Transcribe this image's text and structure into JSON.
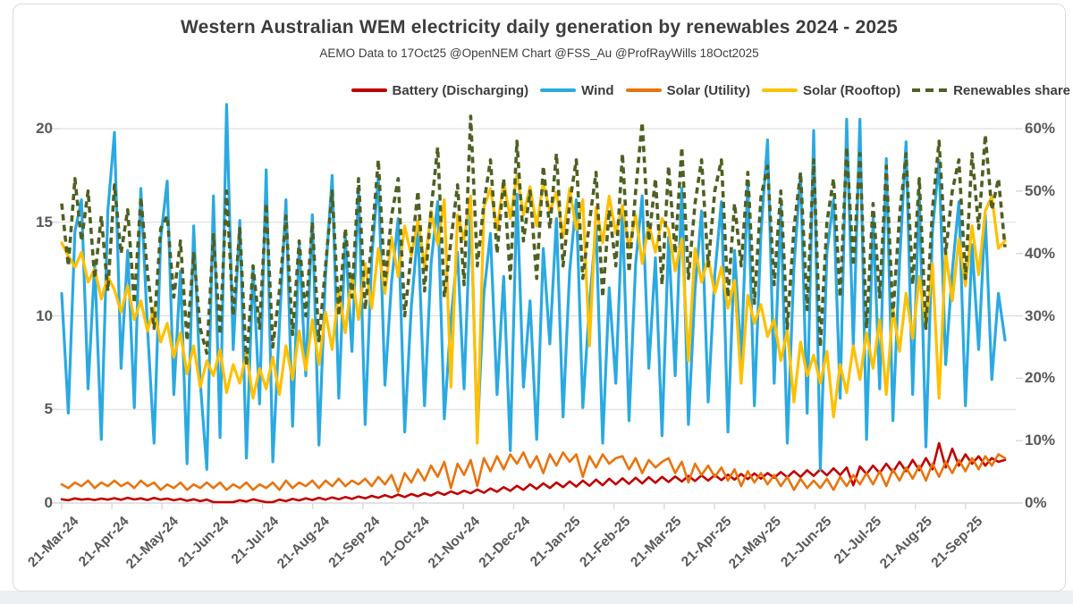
{
  "title": "Western Australian WEM electricity daily generation by renewables 2024 - 2025",
  "subtitle": "AEMO Data to 17Oct25 @OpenNEM Chart @FSS_Au @ProfRayWills 18Oct2025",
  "colors": {
    "grid": "#d9d9d9",
    "axis_text": "#595959",
    "title_text": "#3d3d3d",
    "battery": "#c00000",
    "wind": "#2ba9e1",
    "solar_utility": "#e8740e",
    "solar_rooftop": "#ffc000",
    "renewables_share": "#4e6022"
  },
  "chart_data": {
    "type": "line",
    "title": "Western Australian WEM electricity daily generation by renewables 2024 - 2025",
    "subtitle": "AEMO Data to 17Oct25 @OpenNEM Chart @FSS_Au @ProfRayWills 18Oct2025",
    "legend_position": "top-right",
    "grid": "horizontal",
    "x_start": "21-Mar-24",
    "x_end": "17-Oct-25",
    "sample_interval_days": 4,
    "x_tick_labels": [
      "21-Mar-24",
      "21-Apr-24",
      "21-May-24",
      "21-Jun-24",
      "21-Jul-24",
      "21-Aug-24",
      "21-Sep-24",
      "21-Oct-24",
      "21-Nov-24",
      "21-Dec-24",
      "21-Jan-25",
      "21-Feb-25",
      "21-Mar-25",
      "21-Apr-25",
      "21-May-25",
      "21-Jun-25",
      "21-Jul-25",
      "21-Aug-25",
      "21-Sep-25"
    ],
    "left_axis": {
      "ticks": [
        "20",
        "15",
        "10",
        "5",
        "0"
      ],
      "range": [
        0,
        20
      ]
    },
    "right_axis": {
      "ticks": [
        "60%",
        "50%",
        "40%",
        "30%",
        "20%",
        "10%",
        "0%"
      ],
      "range": [
        0,
        60
      ]
    },
    "series": [
      {
        "name": "Battery (Discharging)",
        "axis": "left",
        "color": "#c00000",
        "dashed": false,
        "values": [
          0.2,
          0.15,
          0.25,
          0.18,
          0.22,
          0.16,
          0.24,
          0.18,
          0.26,
          0.17,
          0.28,
          0.19,
          0.25,
          0.16,
          0.27,
          0.18,
          0.24,
          0.15,
          0.22,
          0.12,
          0.2,
          0.1,
          0.18,
          0.05,
          0.05,
          0.05,
          0.05,
          0.15,
          0.08,
          0.2,
          0.12,
          0.05,
          0.05,
          0.18,
          0.1,
          0.22,
          0.14,
          0.25,
          0.16,
          0.28,
          0.18,
          0.3,
          0.2,
          0.32,
          0.22,
          0.35,
          0.25,
          0.38,
          0.28,
          0.42,
          0.3,
          0.45,
          0.32,
          0.48,
          0.36,
          0.52,
          0.4,
          0.58,
          0.44,
          0.62,
          0.48,
          0.66,
          0.52,
          0.72,
          0.55,
          0.78,
          0.6,
          0.85,
          0.65,
          0.92,
          0.7,
          1.0,
          0.75,
          1.05,
          0.8,
          1.1,
          0.85,
          1.15,
          0.88,
          1.2,
          0.92,
          1.25,
          0.95,
          1.3,
          1.0,
          1.32,
          1.02,
          1.35,
          1.05,
          1.38,
          1.08,
          1.4,
          1.12,
          1.42,
          1.15,
          1.45,
          1.18,
          1.48,
          1.2,
          1.5,
          1.22,
          1.52,
          1.25,
          1.55,
          1.28,
          1.58,
          1.3,
          1.6,
          1.35,
          1.65,
          1.38,
          1.7,
          1.4,
          1.75,
          1.45,
          1.8,
          1.48,
          1.85,
          1.5,
          1.9,
          0.95,
          1.95,
          1.55,
          2.0,
          1.6,
          2.1,
          1.65,
          2.2,
          1.7,
          2.3,
          1.75,
          2.4,
          1.8,
          3.2,
          1.9,
          2.9,
          2.0,
          2.6,
          2.1,
          2.5,
          2.0,
          2.4,
          2.2,
          2.3
        ]
      },
      {
        "name": "Wind",
        "axis": "left",
        "color": "#2ba9e1",
        "dashed": false,
        "values": [
          11.2,
          4.8,
          14.5,
          16.2,
          6.1,
          12.8,
          3.4,
          15.6,
          19.8,
          7.2,
          13.5,
          5.1,
          16.8,
          9.4,
          3.2,
          14.1,
          17.2,
          5.8,
          12.4,
          2.1,
          14.8,
          6.5,
          1.8,
          16.4,
          3.5,
          21.3,
          8.2,
          15.1,
          2.4,
          12.6,
          5.3,
          17.8,
          2.2,
          9.5,
          16.2,
          4.1,
          13.8,
          6.8,
          15.4,
          3.1,
          12.2,
          17.5,
          5.6,
          14.2,
          8.1,
          16.8,
          4.2,
          13.1,
          17.4,
          6.3,
          11.8,
          15.2,
          3.8,
          10.5,
          14.6,
          5.2,
          12.8,
          16.1,
          4.5,
          9.8,
          13.4,
          6.1,
          15.8,
          3.6,
          11.2,
          14.4,
          5.8,
          12.1,
          2.8,
          16.5,
          6.2,
          10.8,
          3.4,
          13.6,
          8.5,
          15.2,
          4.6,
          12.4,
          16.2,
          5.1,
          10.6,
          14.8,
          3.2,
          11.5,
          6.4,
          15.6,
          4.4,
          12.8,
          16.4,
          7.2,
          13.1,
          3.6,
          14.2,
          6.8,
          16.8,
          4.2,
          11.4,
          15.6,
          5.4,
          12.2,
          16.1,
          3.8,
          13.5,
          7.6,
          17.2,
          5.2,
          14.4,
          19.4,
          6.4,
          15.8,
          3.2,
          12.6,
          17.6,
          4.8,
          19.9,
          1.8,
          13.4,
          16.2,
          5.6,
          20.5,
          8.4,
          20.5,
          3.4,
          15.2,
          6.1,
          18.4,
          4.4,
          12.8,
          19.3,
          5.8,
          16.6,
          3.0,
          14.5,
          18.3,
          7.4,
          12.4,
          16.1,
          5.2,
          13.8,
          8.2,
          15.4,
          6.6,
          11.2,
          8.7
        ]
      },
      {
        "name": "Solar (Utility)",
        "axis": "left",
        "color": "#e8740e",
        "dashed": false,
        "values": [
          1.0,
          0.8,
          1.1,
          0.9,
          1.2,
          0.8,
          1.1,
          0.9,
          1.2,
          0.9,
          1.1,
          0.8,
          1.2,
          0.9,
          1.1,
          0.7,
          1.0,
          0.8,
          1.1,
          0.7,
          1.0,
          0.8,
          1.1,
          0.8,
          1.1,
          0.7,
          1.0,
          0.8,
          1.1,
          0.7,
          1.0,
          0.8,
          1.1,
          0.7,
          1.2,
          0.8,
          1.1,
          0.9,
          1.2,
          0.8,
          1.2,
          0.9,
          1.3,
          0.9,
          1.2,
          1.0,
          1.3,
          0.9,
          1.4,
          1.0,
          1.5,
          0.6,
          1.6,
          1.1,
          1.8,
          1.2,
          2.0,
          1.4,
          2.2,
          0.8,
          2.1,
          1.5,
          2.3,
          0.9,
          2.4,
          1.7,
          2.5,
          1.8,
          2.6,
          2.1,
          2.7,
          1.9,
          2.5,
          1.6,
          2.6,
          2.0,
          2.7,
          2.2,
          2.6,
          1.4,
          2.5,
          1.9,
          2.6,
          2.1,
          2.4,
          2.5,
          1.8,
          2.4,
          1.6,
          2.3,
          1.9,
          2.2,
          2.4,
          1.6,
          2.2,
          1.1,
          2.1,
          1.5,
          2.0,
          1.4,
          1.9,
          1.2,
          1.8,
          0.9,
          1.7,
          1.1,
          1.6,
          1.0,
          1.5,
          0.9,
          1.4,
          0.7,
          1.3,
          0.8,
          1.2,
          0.8,
          1.3,
          0.7,
          1.4,
          0.9,
          1.5,
          1.0,
          1.6,
          1.0,
          1.7,
          0.9,
          1.8,
          1.2,
          1.9,
          1.3,
          2.0,
          1.2,
          2.1,
          1.4,
          2.2,
          1.6,
          2.3,
          1.7,
          2.4,
          1.8,
          2.5,
          2.0,
          2.6,
          2.4
        ]
      },
      {
        "name": "Solar (Rooftop)",
        "axis": "left",
        "color": "#ffc000",
        "dashed": false,
        "values": [
          13.9,
          13.2,
          12.6,
          13.4,
          11.8,
          12.5,
          10.9,
          12.1,
          11.4,
          10.2,
          11.6,
          9.8,
          10.8,
          9.2,
          10.4,
          8.6,
          9.6,
          7.8,
          9.1,
          6.9,
          8.4,
          6.2,
          7.6,
          6.8,
          8.2,
          5.9,
          7.4,
          6.4,
          8.0,
          5.6,
          7.2,
          6.1,
          7.8,
          5.8,
          8.4,
          6.6,
          9.2,
          7.1,
          9.8,
          7.4,
          10.2,
          8.2,
          11.4,
          9.1,
          12.2,
          9.8,
          12.8,
          10.4,
          13.6,
          11.2,
          14.2,
          12.1,
          14.8,
          13.2,
          15.1,
          12.6,
          15.6,
          13.8,
          16.2,
          6.2,
          15.4,
          14.1,
          16.4,
          3.2,
          15.8,
          16.8,
          14.6,
          17.2,
          15.2,
          17.5,
          15.4,
          16.9,
          14.8,
          17.1,
          15.6,
          16.6,
          14.2,
          16.8,
          14.6,
          16.2,
          8.4,
          15.8,
          13.9,
          16.4,
          14.4,
          15.9,
          13.6,
          15.4,
          12.8,
          14.9,
          13.4,
          15.2,
          14.6,
          12.4,
          14.1,
          7.6,
          13.6,
          11.8,
          13.1,
          11.2,
          12.6,
          10.4,
          11.9,
          6.4,
          11.1,
          9.6,
          10.6,
          8.9,
          9.8,
          7.6,
          9.2,
          5.4,
          8.6,
          6.8,
          7.9,
          6.4,
          8.1,
          4.6,
          7.4,
          5.9,
          8.4,
          6.6,
          9.1,
          7.2,
          9.8,
          5.8,
          10.4,
          8.1,
          11.2,
          8.8,
          12.1,
          9.4,
          12.8,
          5.6,
          13.4,
          10.8,
          14.1,
          11.6,
          14.8,
          12.2,
          15.6,
          16.4,
          13.6,
          14.0
        ]
      },
      {
        "name": "Renewables share",
        "axis": "right",
        "color": "#4e6022",
        "dashed": true,
        "values": [
          48,
          38,
          52,
          42,
          50,
          36,
          46,
          34,
          51,
          40,
          47,
          32,
          49,
          37,
          28,
          44,
          46,
          33,
          42,
          26,
          40,
          28,
          24,
          43,
          27,
          50,
          30,
          44,
          22,
          38,
          28,
          48,
          25,
          34,
          46,
          27,
          42,
          30,
          45,
          26,
          38,
          50,
          30,
          44,
          33,
          52,
          31,
          42,
          55,
          35,
          46,
          52,
          30,
          40,
          50,
          34,
          47,
          57,
          33,
          42,
          51,
          35,
          62,
          38,
          48,
          55,
          40,
          52,
          36,
          58,
          42,
          50,
          36,
          54,
          44,
          56,
          38,
          48,
          55,
          36,
          45,
          53,
          33,
          47,
          38,
          56,
          37,
          50,
          61,
          42,
          52,
          35,
          54,
          40,
          57,
          36,
          48,
          55,
          38,
          50,
          55,
          33,
          48,
          38,
          53,
          32,
          49,
          54,
          35,
          50,
          28,
          44,
          53,
          31,
          55,
          25,
          45,
          52,
          33,
          57,
          38,
          56,
          28,
          48,
          33,
          54,
          30,
          46,
          56,
          35,
          52,
          28,
          47,
          58,
          40,
          50,
          55,
          36,
          56,
          44,
          59,
          47,
          52,
          41
        ]
      }
    ]
  }
}
